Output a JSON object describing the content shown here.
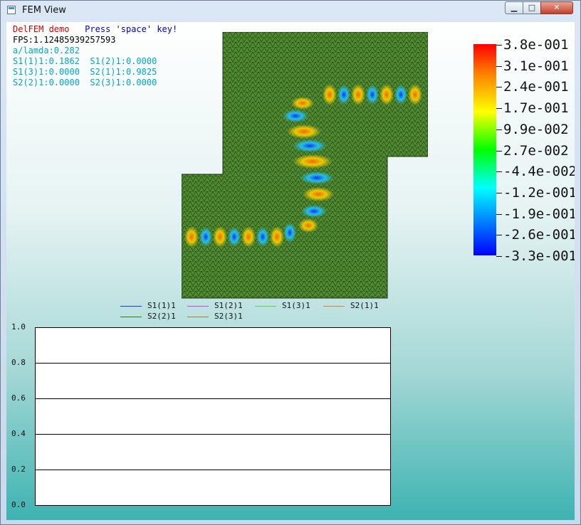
{
  "window": {
    "title": "FEM View",
    "minimize_symbol": "▁",
    "maximize_symbol": "□",
    "close_symbol": "✕"
  },
  "info": {
    "demo_title": "DelFEM demo",
    "hint": "Press 'space' key!",
    "fps": "FPS:1.12485939257593",
    "ratio": "a/lamda:0.282",
    "s_params": [
      "S1(1)1:0.1862  S1(2)1:0.0000",
      "S1(3)1:0.0000  S2(1)1:0.9825",
      "S2(2)1:0.0000  S2(3)1:0.0000"
    ],
    "colors": {
      "title": "#d40000",
      "hint": "#0000c8",
      "fps": "#000000",
      "cyan": "#00a6c8"
    }
  },
  "colorbar": {
    "labels": [
      "3.8e-001",
      "3.1e-001",
      "2.4e-001",
      "1.7e-001",
      "9.9e-002",
      "2.7e-002",
      "-4.4e-002",
      "-1.2e-001",
      "-1.9e-001",
      "-2.6e-001",
      "-3.3e-001"
    ]
  },
  "legend": [
    {
      "name": "S1(1)1",
      "color": "#1040ff"
    },
    {
      "name": "S1(2)1",
      "color": "#d040ff"
    },
    {
      "name": "S1(3)1",
      "color": "#40e040"
    },
    {
      "name": "S2(1)1",
      "color": "#e08020"
    },
    {
      "name": "S2(2)1",
      "color": "#208020"
    },
    {
      "name": "S2(3)1",
      "color": "#a08030"
    }
  ],
  "chart_data": {
    "type": "line",
    "ylim": [
      0.0,
      1.0
    ],
    "yticks": [
      "1.0",
      "0.8",
      "0.6",
      "0.4",
      "0.2",
      "0.0"
    ],
    "grid": true,
    "series": []
  }
}
